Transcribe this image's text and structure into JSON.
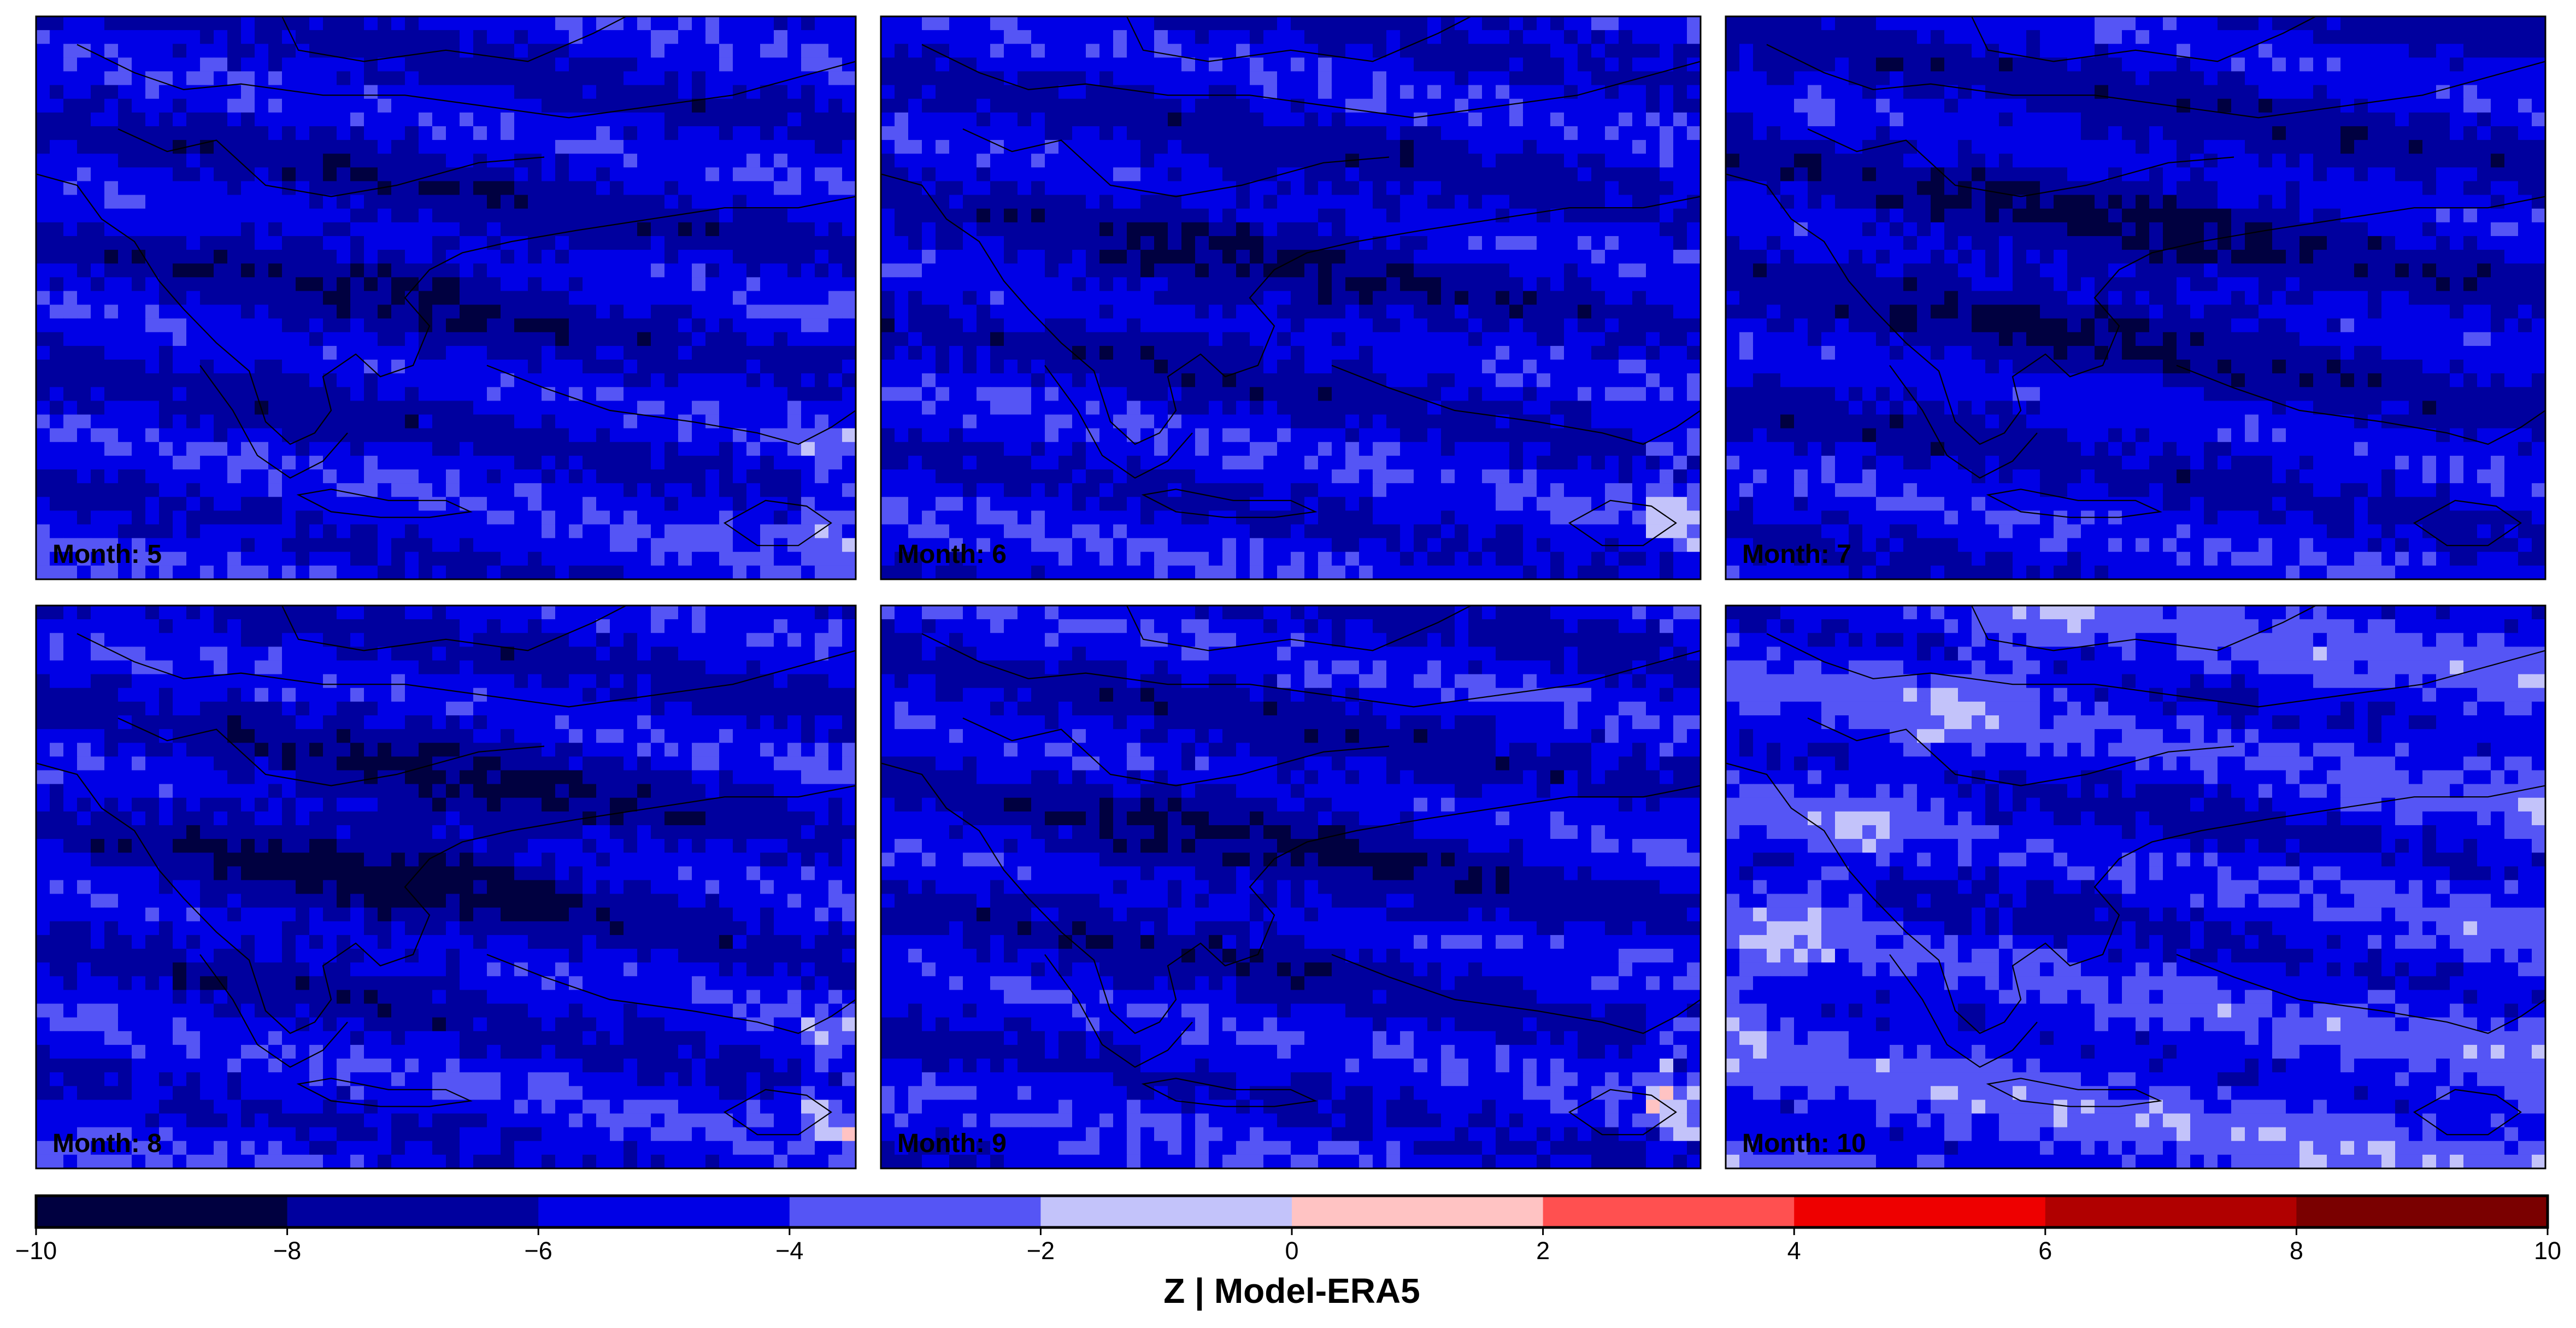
{
  "figure": {
    "variable": "Z",
    "comparison": "Model-ERA5",
    "colorbar_title": "Z | Model-ERA5"
  },
  "panels": [
    {
      "id": "month-5",
      "label": "Month: 5",
      "month": 5
    },
    {
      "id": "month-6",
      "label": "Month: 6",
      "month": 6
    },
    {
      "id": "month-7",
      "label": "Month: 7",
      "month": 7
    },
    {
      "id": "month-8",
      "label": "Month: 8",
      "month": 8
    },
    {
      "id": "month-9",
      "label": "Month: 9",
      "month": 9
    },
    {
      "id": "month-10",
      "label": "Month: 10",
      "month": 10
    }
  ],
  "colorbar": {
    "min": -10,
    "max": 10,
    "ticks": [
      "−10",
      "−8",
      "−6",
      "−4",
      "−2",
      "0",
      "2",
      "4",
      "6",
      "8",
      "10"
    ],
    "tick_values": [
      -10,
      -8,
      -6,
      -4,
      -2,
      0,
      2,
      4,
      6,
      8,
      10
    ],
    "colors": [
      "#000040",
      "#00009e",
      "#0000e6",
      "#5555f5",
      "#c3c3fa",
      "#ffc3c3",
      "#ff5050",
      "#ee0000",
      "#b00000",
      "#7a0000"
    ]
  }
}
